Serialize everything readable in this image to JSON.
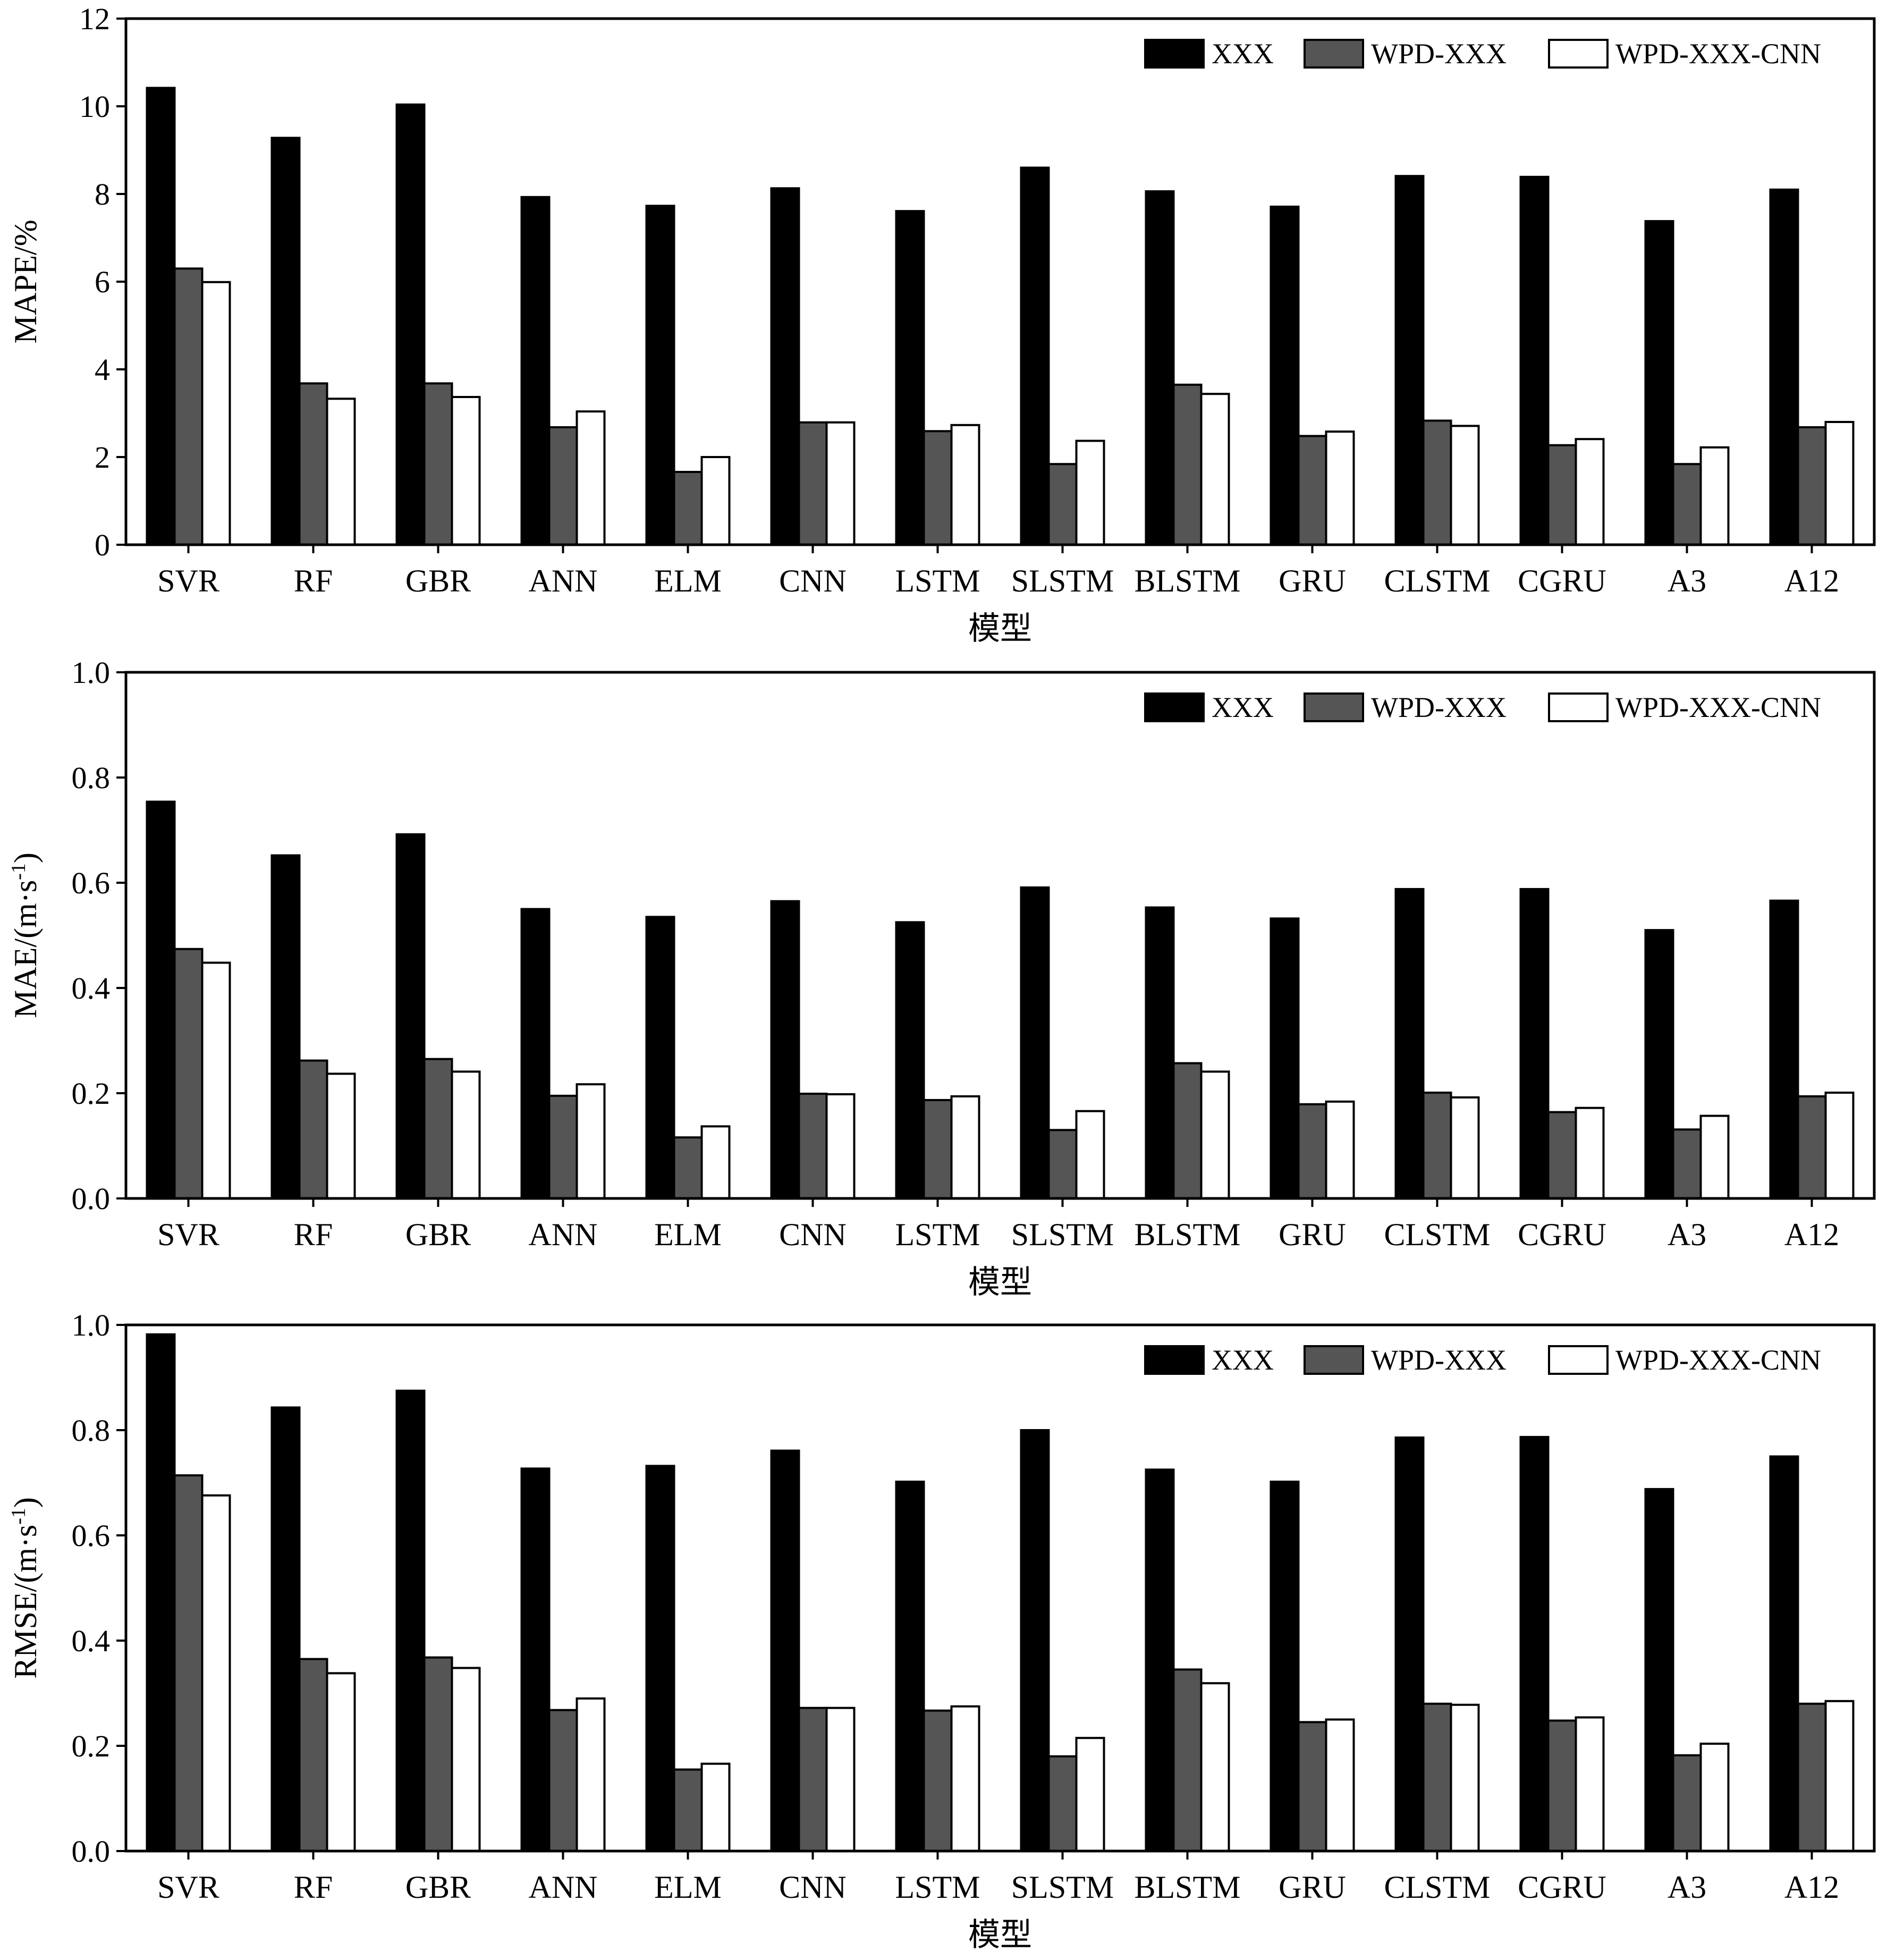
{
  "legend": [
    "XXX",
    "WPD-XXX",
    "WPD-XXX-CNN"
  ],
  "colors": {
    "XXX": "#000000",
    "WPD-XXX": "#555555",
    "WPD-XXX-CNN": "#ffffff",
    "axis": "#000000"
  },
  "chart_data": [
    {
      "type": "bar",
      "ylabel": "MAPE/%",
      "xlabel": "模型",
      "ylim": [
        0,
        12
      ],
      "yticks": [
        0,
        2,
        4,
        6,
        8,
        10,
        12
      ],
      "ytick_labels": [
        "0",
        "2",
        "4",
        "6",
        "8",
        "10",
        "12"
      ],
      "categories": [
        "SVR",
        "RF",
        "GBR",
        "ANN",
        "ELM",
        "CNN",
        "LSTM",
        "SLSTM",
        "BLSTM",
        "GRU",
        "CLSTM",
        "CGRU",
        "A3",
        "A12"
      ],
      "legend_position": "top-right",
      "series": [
        {
          "name": "XXX",
          "values": [
            10.42,
            9.28,
            10.04,
            7.93,
            7.73,
            8.13,
            7.61,
            8.6,
            8.06,
            7.71,
            8.41,
            8.39,
            7.38,
            8.1
          ]
        },
        {
          "name": "WPD-XXX",
          "values": [
            6.3,
            3.68,
            3.68,
            2.68,
            1.66,
            2.79,
            2.59,
            1.84,
            3.65,
            2.48,
            2.83,
            2.27,
            1.84,
            2.68
          ]
        },
        {
          "name": "WPD-XXX-CNN",
          "values": [
            5.99,
            3.33,
            3.37,
            3.04,
            2.0,
            2.79,
            2.73,
            2.37,
            3.44,
            2.58,
            2.71,
            2.41,
            2.22,
            2.8
          ]
        }
      ]
    },
    {
      "type": "bar",
      "ylabel": "MAE/(m·s-1)",
      "xlabel": "模型",
      "ylim": [
        0,
        1.0
      ],
      "yticks": [
        0,
        0.2,
        0.4,
        0.6,
        0.8,
        1.0
      ],
      "ytick_labels": [
        "0.0",
        "0.2",
        "0.4",
        "0.6",
        "0.8",
        "1.0"
      ],
      "categories": [
        "SVR",
        "RF",
        "GBR",
        "ANN",
        "ELM",
        "CNN",
        "LSTM",
        "SLSTM",
        "BLSTM",
        "GRU",
        "CLSTM",
        "CGRU",
        "A3",
        "A12"
      ],
      "legend_position": "top-right",
      "series": [
        {
          "name": "XXX",
          "values": [
            0.754,
            0.652,
            0.692,
            0.55,
            0.535,
            0.565,
            0.525,
            0.591,
            0.553,
            0.532,
            0.588,
            0.588,
            0.51,
            0.566
          ]
        },
        {
          "name": "WPD-XXX",
          "values": [
            0.474,
            0.262,
            0.265,
            0.195,
            0.116,
            0.199,
            0.187,
            0.13,
            0.257,
            0.179,
            0.201,
            0.164,
            0.131,
            0.194
          ]
        },
        {
          "name": "WPD-XXX-CNN",
          "values": [
            0.448,
            0.237,
            0.241,
            0.217,
            0.137,
            0.198,
            0.194,
            0.166,
            0.241,
            0.184,
            0.192,
            0.172,
            0.157,
            0.201
          ]
        }
      ]
    },
    {
      "type": "bar",
      "ylabel": "RMSE/(m·s-1)",
      "xlabel": "模型",
      "ylim": [
        0,
        1.0
      ],
      "yticks": [
        0,
        0.2,
        0.4,
        0.6,
        0.8,
        1.0
      ],
      "ytick_labels": [
        "0.0",
        "0.2",
        "0.4",
        "0.6",
        "0.8",
        "1.0"
      ],
      "categories": [
        "SVR",
        "RF",
        "GBR",
        "ANN",
        "ELM",
        "CNN",
        "LSTM",
        "SLSTM",
        "BLSTM",
        "GRU",
        "CLSTM",
        "CGRU",
        "A3",
        "A12"
      ],
      "legend_position": "top-right",
      "series": [
        {
          "name": "XXX",
          "values": [
            0.982,
            0.843,
            0.875,
            0.727,
            0.732,
            0.761,
            0.702,
            0.8,
            0.725,
            0.702,
            0.786,
            0.787,
            0.688,
            0.75
          ]
        },
        {
          "name": "WPD-XXX",
          "values": [
            0.714,
            0.365,
            0.368,
            0.268,
            0.155,
            0.272,
            0.267,
            0.18,
            0.345,
            0.245,
            0.28,
            0.248,
            0.182,
            0.28
          ]
        },
        {
          "name": "WPD-XXX-CNN",
          "values": [
            0.676,
            0.338,
            0.348,
            0.29,
            0.166,
            0.272,
            0.275,
            0.215,
            0.319,
            0.25,
            0.278,
            0.254,
            0.204,
            0.285
          ]
        }
      ]
    }
  ]
}
